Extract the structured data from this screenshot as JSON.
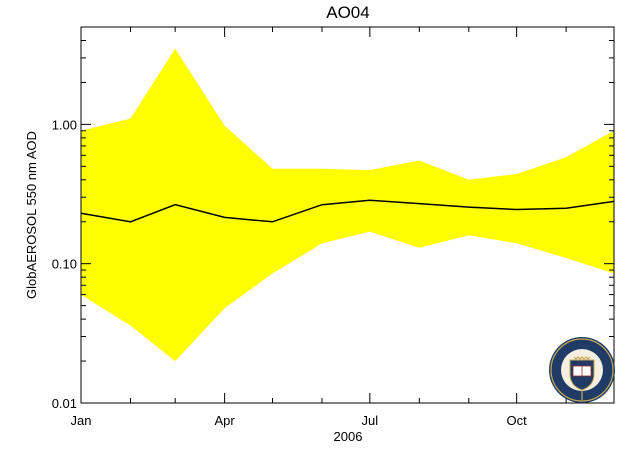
{
  "chart_data": {
    "type": "area",
    "title": "AO04",
    "xlabel": "2006",
    "ylabel": "GlobAEROSOL 550 nm AOD",
    "y_scale": "log",
    "ylim": [
      0.01,
      5.0
    ],
    "xlim": [
      "2006-01-01",
      "2006-12-01"
    ],
    "x_ticks": [
      {
        "label": "Jan",
        "x": "2006-01-01"
      },
      {
        "label": "Apr",
        "x": "2006-04-01"
      },
      {
        "label": "Jul",
        "x": "2006-07-01"
      },
      {
        "label": "Oct",
        "x": "2006-10-01"
      }
    ],
    "y_ticks": [
      {
        "label": "0.01",
        "y": 0.01
      },
      {
        "label": "0.10",
        "y": 0.1
      },
      {
        "label": "1.00",
        "y": 1.0
      }
    ],
    "x": [
      "2006-01-01",
      "2006-02-01",
      "2006-03-01",
      "2006-04-01",
      "2006-05-01",
      "2006-06-01",
      "2006-07-01",
      "2006-08-01",
      "2006-09-01",
      "2006-10-01",
      "2006-11-01",
      "2006-12-01"
    ],
    "series": [
      {
        "values": [
          0.23,
          0.2,
          0.265,
          0.215,
          0.2,
          0.265,
          0.285,
          0.27,
          0.255,
          0.245,
          0.25,
          0.28
        ]
      }
    ],
    "band": {
      "upper": [
        0.9,
        1.1,
        3.5,
        0.98,
        0.48,
        0.48,
        0.47,
        0.55,
        0.4,
        0.44,
        0.58,
        0.9
      ],
      "lower": [
        0.06,
        0.036,
        0.02,
        0.048,
        0.085,
        0.14,
        0.17,
        0.13,
        0.16,
        0.14,
        0.11,
        0.085
      ]
    },
    "band_color": "#ffff00",
    "line_color": "#000000",
    "grid": false
  },
  "logo": {
    "name": "university-of-oxford-crest",
    "text": "UNIVERSITY OF OXFORD"
  }
}
